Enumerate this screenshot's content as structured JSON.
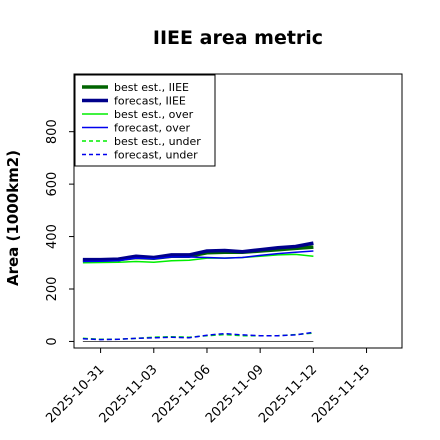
{
  "chart_data": {
    "type": "line",
    "title": "IIEE area metric",
    "ylabel": "Area (1000km2)",
    "xlabel": "",
    "xlim": [
      "2025-10-29T12:00",
      "2025-11-17"
    ],
    "ylim": [
      -25,
      1020
    ],
    "yticks": [
      0,
      200,
      400,
      600,
      800
    ],
    "xticks": [
      {
        "date": "2025-10-31",
        "label": "2025-10-31",
        "color": "#000000"
      },
      {
        "date": "2025-11-03",
        "label": "2025-11-03",
        "color": "#000000"
      },
      {
        "date": "2025-11-06",
        "label": "2025-11-06",
        "color": "#228b22"
      },
      {
        "date": "2025-11-09",
        "label": "2025-11-09",
        "color": "#000000"
      },
      {
        "date": "2025-11-12",
        "label": "2025-11-12",
        "color": "#000000"
      },
      {
        "date": "2025-11-15",
        "label": "2025-11-15",
        "color": "#000000"
      }
    ],
    "grid": false,
    "legend_position": "top-left",
    "zero_line": {
      "y": 0,
      "color": "#555555"
    },
    "series": [
      {
        "name": "best est., IIEE",
        "color": "#006400",
        "width": 3.5,
        "dash": "solid",
        "x": [
          "2025-10-30",
          "2025-10-31",
          "2025-11-01",
          "2025-11-02",
          "2025-11-03",
          "2025-11-04",
          "2025-11-05",
          "2025-11-06",
          "2025-11-07",
          "2025-11-08",
          "2025-11-09",
          "2025-11-10",
          "2025-11-11",
          "2025-11-12"
        ],
        "y": [
          310,
          310,
          312,
          320,
          317,
          325,
          325,
          338,
          340,
          340,
          345,
          350,
          355,
          360
        ]
      },
      {
        "name": "forecast, IIEE",
        "color": "#00008b",
        "width": 3.5,
        "dash": "solid",
        "x": [
          "2025-10-30",
          "2025-10-31",
          "2025-11-01",
          "2025-11-02",
          "2025-11-03",
          "2025-11-04",
          "2025-11-05",
          "2025-11-06",
          "2025-11-07",
          "2025-11-08",
          "2025-11-09",
          "2025-11-10",
          "2025-11-11",
          "2025-11-12"
        ],
        "y": [
          312,
          312,
          314,
          325,
          320,
          330,
          330,
          345,
          347,
          342,
          350,
          357,
          362,
          375
        ]
      },
      {
        "name": "best est., over",
        "color": "#00ee00",
        "width": 1.5,
        "dash": "solid",
        "x": [
          "2025-10-30",
          "2025-10-31",
          "2025-11-01",
          "2025-11-02",
          "2025-11-03",
          "2025-11-04",
          "2025-11-05",
          "2025-11-06",
          "2025-11-07",
          "2025-11-08",
          "2025-11-09",
          "2025-11-10",
          "2025-11-11",
          "2025-11-12"
        ],
        "y": [
          300,
          301,
          302,
          305,
          302,
          308,
          310,
          318,
          318,
          320,
          325,
          330,
          332,
          325
        ]
      },
      {
        "name": "forecast, over",
        "color": "#0000ee",
        "width": 1.5,
        "dash": "solid",
        "x": [
          "2025-10-30",
          "2025-10-31",
          "2025-11-01",
          "2025-11-02",
          "2025-11-03",
          "2025-11-04",
          "2025-11-05",
          "2025-11-06",
          "2025-11-07",
          "2025-11-08",
          "2025-11-09",
          "2025-11-10",
          "2025-11-11",
          "2025-11-12"
        ],
        "y": [
          305,
          306,
          308,
          318,
          315,
          322,
          322,
          320,
          318,
          320,
          328,
          335,
          340,
          345
        ]
      },
      {
        "name": "best est., under",
        "color": "#00ee00",
        "width": 1.5,
        "dash": "dashed",
        "x": [
          "2025-10-30",
          "2025-10-31",
          "2025-11-01",
          "2025-11-02",
          "2025-11-03",
          "2025-11-04",
          "2025-11-05",
          "2025-11-06",
          "2025-11-07",
          "2025-11-08",
          "2025-11-09",
          "2025-11-10",
          "2025-11-11",
          "2025-11-12"
        ],
        "y": [
          12,
          8,
          8,
          12,
          16,
          18,
          16,
          22,
          26,
          22,
          22,
          22,
          26,
          32
        ]
      },
      {
        "name": "forecast, under",
        "color": "#0000ee",
        "width": 1.5,
        "dash": "dashed",
        "x": [
          "2025-10-30",
          "2025-10-31",
          "2025-11-01",
          "2025-11-02",
          "2025-11-03",
          "2025-11-04",
          "2025-11-05",
          "2025-11-06",
          "2025-11-07",
          "2025-11-08",
          "2025-11-09",
          "2025-11-10",
          "2025-11-11",
          "2025-11-12"
        ],
        "y": [
          10,
          7,
          8,
          12,
          14,
          16,
          14,
          24,
          30,
          25,
          22,
          22,
          25,
          35
        ]
      }
    ]
  }
}
